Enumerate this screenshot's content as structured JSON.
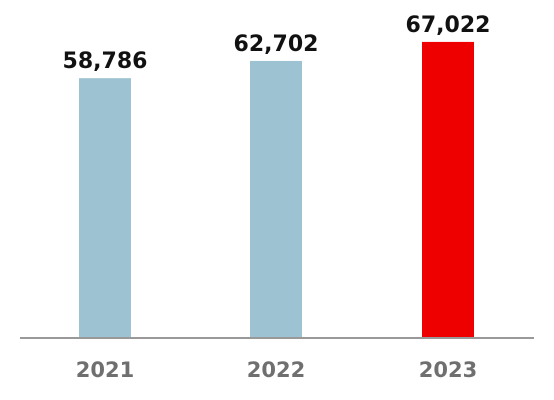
{
  "chart_data": {
    "type": "bar",
    "title": "",
    "xlabel": "",
    "ylabel": "",
    "categories": [
      "2021",
      "2022",
      "2023"
    ],
    "values": [
      58786,
      62702,
      67022
    ],
    "value_labels": [
      "58,786",
      "62,702",
      "67,022"
    ],
    "bar_colors": [
      "#9dc2d2",
      "#9dc2d2",
      "#ee0000"
    ],
    "axis_color": "#999999",
    "ylim": [
      0,
      72000
    ],
    "grid": false,
    "legend": "none"
  }
}
